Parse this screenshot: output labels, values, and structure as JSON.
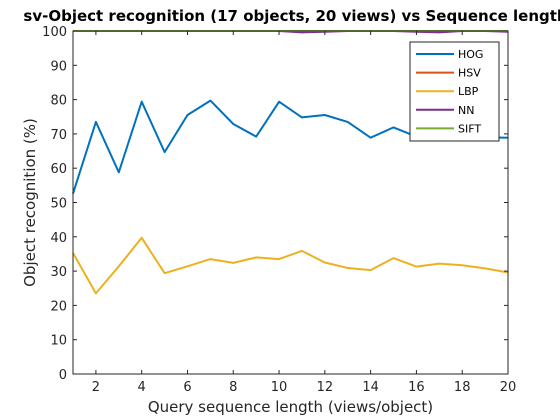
{
  "chart_data": {
    "type": "line",
    "title": "sv-Object recognition (17 objects, 20 views) vs Sequence length",
    "xlabel": "Query sequence length (views/object)",
    "ylabel": "Object recognition (%)",
    "xlim": [
      1,
      20
    ],
    "ylim": [
      0,
      100
    ],
    "xticks": [
      2,
      4,
      6,
      8,
      10,
      12,
      14,
      16,
      18,
      20
    ],
    "yticks": [
      0,
      10,
      20,
      30,
      40,
      50,
      60,
      70,
      80,
      90,
      100
    ],
    "grid": false,
    "legend_position": "top-right",
    "x": [
      1,
      2,
      3,
      4,
      5,
      6,
      7,
      8,
      9,
      10,
      11,
      12,
      13,
      14,
      15,
      16,
      17,
      18,
      19,
      20
    ],
    "series": [
      {
        "name": "HOG",
        "color": "#0072BD",
        "values": [
          52.6,
          73.5,
          58.8,
          79.4,
          64.7,
          75.5,
          79.7,
          72.9,
          69.2,
          79.4,
          74.8,
          75.5,
          73.5,
          68.9,
          71.9,
          69.2,
          70.6,
          69.6,
          69.0,
          68.9
        ]
      },
      {
        "name": "HSV",
        "color": "#D95319",
        "values": [
          100,
          100,
          100,
          100,
          100,
          100,
          100,
          100,
          100,
          100,
          100,
          100,
          100,
          100,
          100,
          100,
          100,
          100,
          100,
          100
        ]
      },
      {
        "name": "LBP",
        "color": "#EDB120",
        "values": [
          35.3,
          23.5,
          31.4,
          39.7,
          29.4,
          31.4,
          33.5,
          32.4,
          34.0,
          33.5,
          35.9,
          32.5,
          30.9,
          30.3,
          33.8,
          31.3,
          32.2,
          31.7,
          30.8,
          29.6
        ]
      },
      {
        "name": "NN",
        "color": "#7E2F8E",
        "values": [
          100,
          100,
          100,
          100,
          100,
          100,
          100,
          100,
          100,
          100,
          99.6,
          99.8,
          100,
          100,
          100,
          99.8,
          99.6,
          100,
          100,
          99.8
        ]
      },
      {
        "name": "SIFT",
        "color": "#77AC30",
        "values": [
          100,
          100,
          100,
          100,
          100,
          100,
          100,
          100,
          100,
          100,
          100,
          100,
          100,
          100,
          100,
          100,
          100,
          100,
          100,
          100
        ]
      }
    ]
  }
}
